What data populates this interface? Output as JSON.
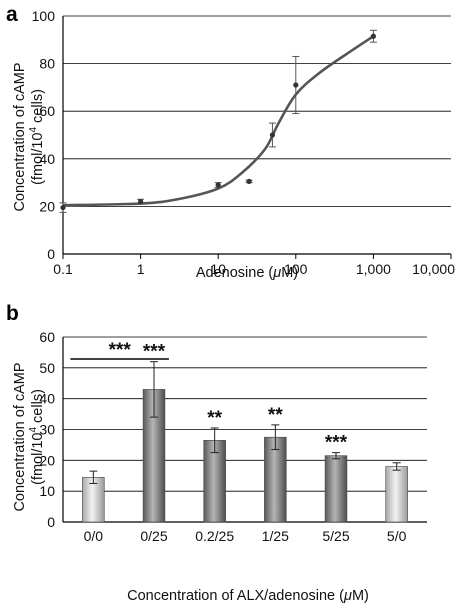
{
  "chart_data": [
    {
      "panel": "a",
      "type": "scatter",
      "xscale": "log",
      "x_ticks": [
        "0.1",
        "1",
        "10",
        "100",
        "1,000",
        "10,000"
      ],
      "y_ticks": [
        "0",
        "20",
        "40",
        "60",
        "80",
        "100"
      ],
      "xlim": [
        0.1,
        10000
      ],
      "ylim": [
        0,
        100
      ],
      "grid": true,
      "xlabel_parts": [
        "Adenosine (",
        "μ",
        "M)"
      ],
      "ylabel_lines": [
        "Concentration of cAMP",
        "(fmol/10",
        "4",
        " cells)"
      ],
      "points": [
        {
          "x": 0.1,
          "y": 19.5,
          "err": 2
        },
        {
          "x": 1,
          "y": 22,
          "err": 1
        },
        {
          "x": 10,
          "y": 29,
          "err": 1
        },
        {
          "x": 25,
          "y": 30.5,
          "err": 0.5
        },
        {
          "x": 50,
          "y": 50,
          "err": 5
        },
        {
          "x": 100,
          "y": 71,
          "err": 12
        },
        {
          "x": 1000,
          "y": 91.5,
          "err": 2.5
        }
      ],
      "curve": [
        [
          0.1,
          20.5
        ],
        [
          1,
          21.2
        ],
        [
          3,
          23
        ],
        [
          10,
          27.5
        ],
        [
          20,
          34
        ],
        [
          40,
          44
        ],
        [
          60,
          55
        ],
        [
          100,
          67
        ],
        [
          200,
          76
        ],
        [
          500,
          85
        ],
        [
          1000,
          91.5
        ]
      ],
      "colors": {
        "line": "#555555",
        "point": "#333333",
        "grid": "#000000"
      }
    },
    {
      "panel": "b",
      "type": "bar",
      "categories": [
        "0/0",
        "0/25",
        "0.2/25",
        "1/25",
        "5/25",
        "5/0"
      ],
      "values": [
        14.5,
        43,
        26.5,
        27.5,
        21.5,
        18
      ],
      "errors": [
        2,
        9,
        4,
        4,
        1,
        1.2
      ],
      "significance": [
        "",
        "***",
        "**",
        "**",
        "***",
        ""
      ],
      "bracket": {
        "from": 0,
        "to": 1,
        "label": "***"
      },
      "y_ticks": [
        "0",
        "10",
        "20",
        "30",
        "40",
        "50",
        "60"
      ],
      "ylim": [
        0,
        60
      ],
      "grid": true,
      "xlabel_parts": [
        "Concentration of ALX/adenosine (",
        "μ",
        "M)"
      ],
      "ylabel_lines": [
        "Concentration of cAMP",
        "(fmol/10",
        "4",
        " cells)"
      ],
      "bar_shades": [
        "light",
        "dark",
        "dark",
        "dark",
        "dark",
        "light"
      ],
      "colors": {
        "dark": "#7a7a7a",
        "light": "#c9c9c9"
      }
    }
  ]
}
